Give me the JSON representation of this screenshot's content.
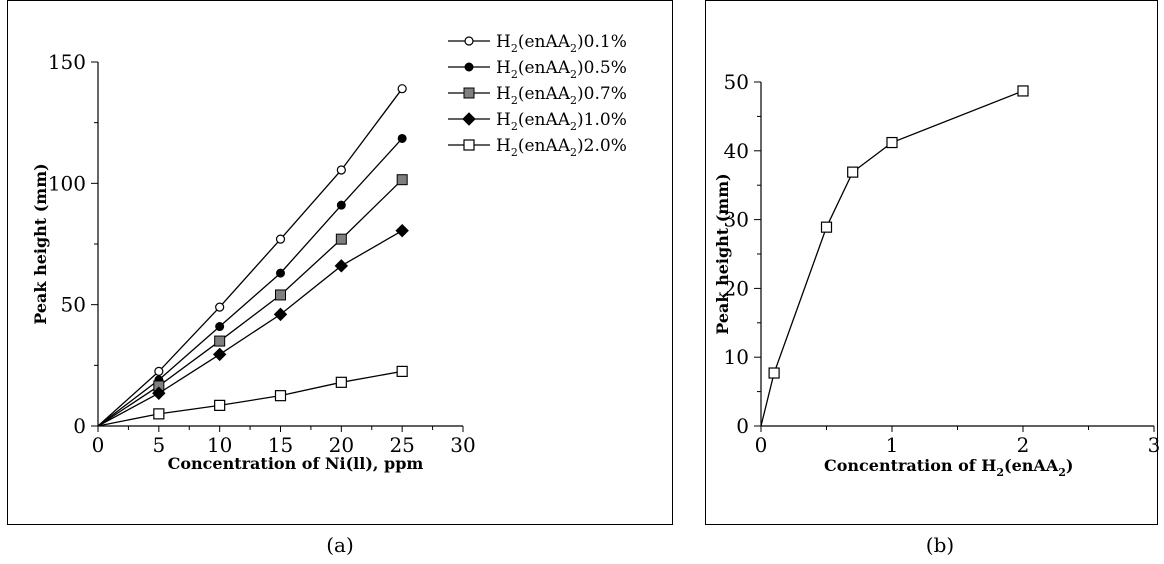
{
  "captions": {
    "a": "(a)",
    "b": "(b)"
  },
  "colors": {
    "line": "#000000",
    "gray_marker": "#7f7f7f",
    "white_marker": "#ffffff"
  },
  "chart_data": [
    {
      "type": "line",
      "panel": "a",
      "xlabel": "Concentration of Ni(ll), ppm",
      "ylabel": "Peak height (mm)",
      "xlim": [
        0,
        30
      ],
      "ylim": [
        0,
        150
      ],
      "xticks": [
        0,
        5,
        10,
        15,
        20,
        25,
        30
      ],
      "yticks": [
        0,
        50,
        100,
        150
      ],
      "grid": false,
      "legend_position": "top-right",
      "x": [
        0,
        5,
        10,
        15,
        20,
        25
      ],
      "series": [
        {
          "name": "H2(enAA2)0.1%",
          "legend_main": "H",
          "legend_sub1": "2",
          "legend_mid": "(enAA",
          "legend_sub2": "2",
          "legend_end": ")0.1%",
          "marker": "circle-open",
          "values": [
            0,
            22.5,
            49,
            77,
            105.5,
            139
          ]
        },
        {
          "name": "H2(enAA2)0.5%",
          "legend_main": "H",
          "legend_sub1": "2",
          "legend_mid": "(enAA",
          "legend_sub2": "2",
          "legend_end": ")0.5%",
          "marker": "circle-filled",
          "values": [
            0,
            19,
            41,
            63,
            91,
            118.5
          ]
        },
        {
          "name": "H2(enAA2)0.7%",
          "legend_main": "H",
          "legend_sub1": "2",
          "legend_mid": "(enAA",
          "legend_sub2": "2",
          "legend_end": ")0.7%",
          "marker": "square-gray",
          "values": [
            0,
            16.5,
            35,
            54,
            77,
            101.5
          ]
        },
        {
          "name": "H2(enAA2)1.0%",
          "legend_main": "H",
          "legend_sub1": "2",
          "legend_mid": "(enAA",
          "legend_sub2": "2",
          "legend_end": ")1.0%",
          "marker": "diamond-filled",
          "values": [
            0,
            13.5,
            29.5,
            46,
            66,
            80.5
          ]
        },
        {
          "name": "H2(enAA2)2.0%",
          "legend_main": "H",
          "legend_sub1": "2",
          "legend_mid": "(enAA",
          "legend_sub2": "2",
          "legend_end": ")2.0%",
          "marker": "square-open",
          "values": [
            0,
            5,
            8.5,
            12.5,
            18,
            22.5
          ]
        }
      ]
    },
    {
      "type": "line",
      "panel": "b",
      "xlabel": "Concentration of H2(enAA2)",
      "xlabel_parts": {
        "p1": "Concentration of H",
        "s1": "2",
        "p2": "(enAA",
        "s2": "2",
        "p3": ")"
      },
      "ylabel": "Peak height (mm)",
      "xlim": [
        0,
        3
      ],
      "ylim": [
        0,
        50
      ],
      "xticks": [
        0,
        1,
        2,
        3
      ],
      "yticks": [
        0,
        10,
        20,
        30,
        40,
        50
      ],
      "grid": false,
      "series": [
        {
          "marker": "square-open",
          "x": [
            0,
            0.1,
            0.5,
            0.7,
            1.0,
            2.0
          ],
          "values": [
            0,
            7.7,
            28.9,
            36.9,
            41.2,
            48.7
          ]
        }
      ]
    }
  ]
}
